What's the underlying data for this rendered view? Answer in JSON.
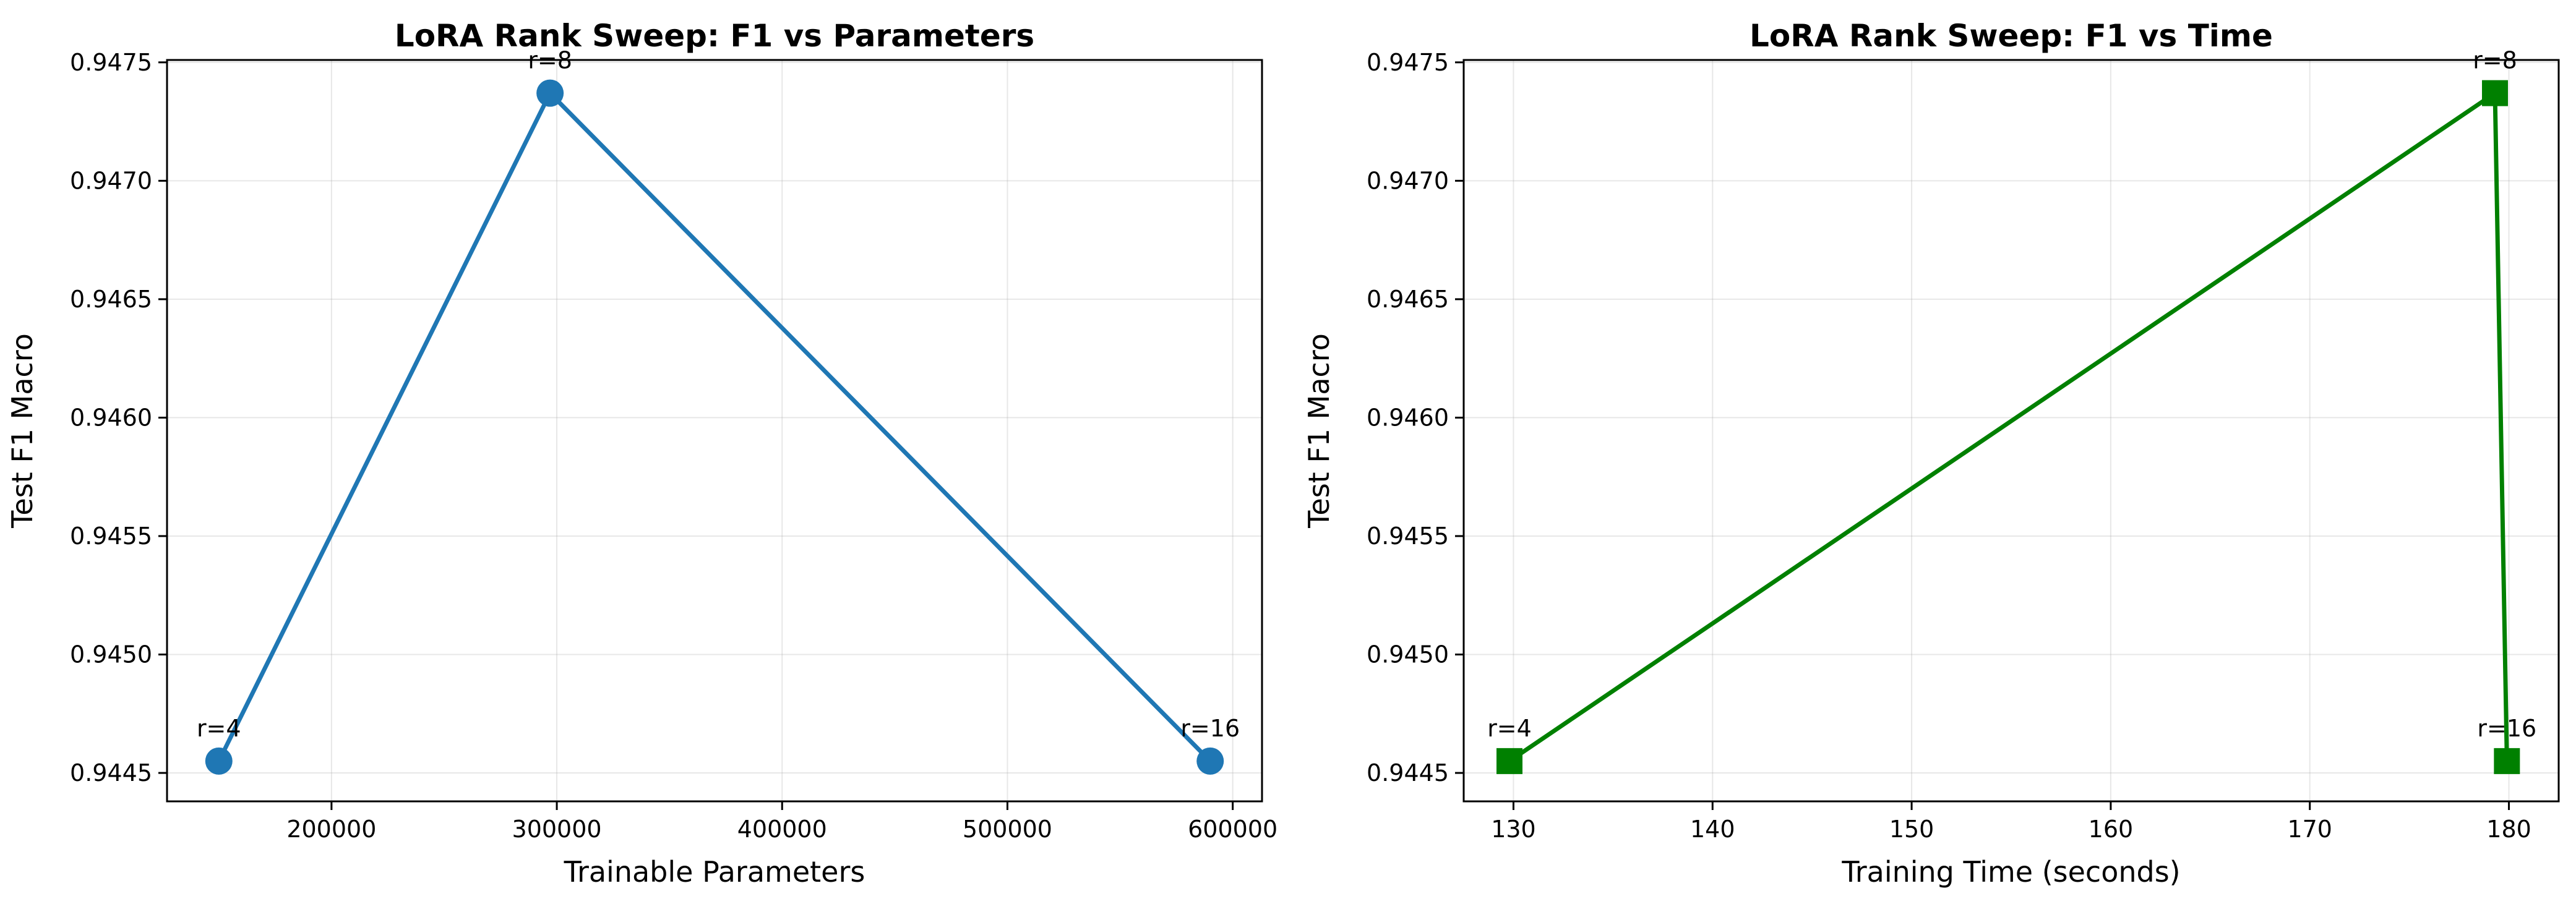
{
  "chart_data": [
    {
      "type": "line",
      "title": "LoRA Rank Sweep: F1 vs Parameters",
      "xlabel": "Trainable Parameters",
      "ylabel": "Test F1 Macro",
      "xlim": [
        127000,
        613000
      ],
      "ylim": [
        0.94438,
        0.94751
      ],
      "xticks": [
        200000,
        300000,
        400000,
        500000,
        600000
      ],
      "yticks": [
        0.9445,
        0.945,
        0.9455,
        0.946,
        0.9465,
        0.947,
        0.9475
      ],
      "ytick_decimals": 4,
      "grid": true,
      "color": "#1f77b4",
      "marker": "circle",
      "series": [
        {
          "x": [
            150000,
            297000,
            590000
          ],
          "y": [
            0.94455,
            0.94737,
            0.94455
          ],
          "labels": [
            "r=4",
            "r=8",
            "r=16"
          ]
        }
      ]
    },
    {
      "type": "line",
      "title": "LoRA Rank Sweep: F1 vs Time",
      "xlabel": "Training Time (seconds)",
      "ylabel": "Test F1 Macro",
      "xlim": [
        127.5,
        182.5
      ],
      "ylim": [
        0.94438,
        0.94751
      ],
      "xticks": [
        130,
        140,
        150,
        160,
        170,
        180
      ],
      "yticks": [
        0.9445,
        0.945,
        0.9455,
        0.946,
        0.9465,
        0.947,
        0.9475
      ],
      "ytick_decimals": 4,
      "grid": true,
      "color": "#008000",
      "marker": "square",
      "series": [
        {
          "x": [
            129.8,
            179.3,
            179.9
          ],
          "y": [
            0.94455,
            0.94737,
            0.94455
          ],
          "labels": [
            "r=4",
            "r=8",
            "r=16"
          ]
        }
      ]
    }
  ]
}
